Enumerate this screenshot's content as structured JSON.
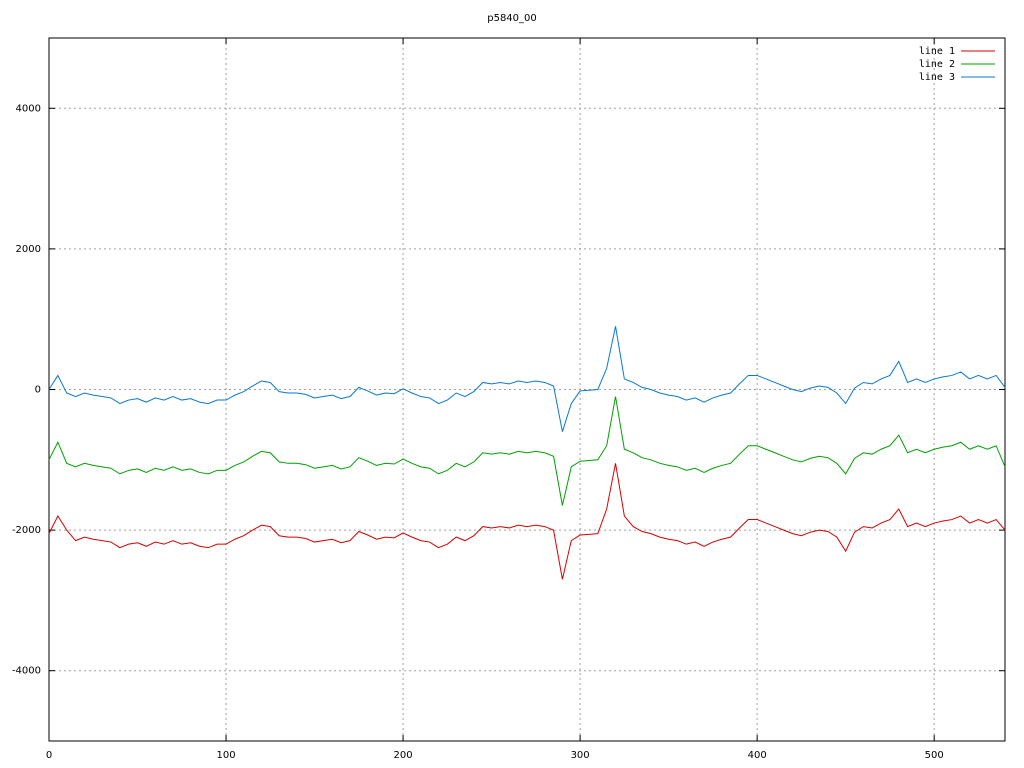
{
  "chart_data": {
    "type": "line",
    "title": "p5840_00",
    "x": [
      0,
      5,
      10,
      15,
      20,
      25,
      30,
      35,
      40,
      45,
      50,
      55,
      60,
      65,
      70,
      75,
      80,
      85,
      90,
      95,
      100,
      105,
      110,
      115,
      120,
      125,
      130,
      135,
      140,
      145,
      150,
      155,
      160,
      165,
      170,
      175,
      180,
      185,
      190,
      195,
      200,
      205,
      210,
      215,
      220,
      225,
      230,
      235,
      240,
      245,
      250,
      255,
      260,
      265,
      270,
      275,
      280,
      285,
      290,
      295,
      300,
      305,
      310,
      315,
      320,
      325,
      330,
      335,
      340,
      345,
      350,
      355,
      360,
      365,
      370,
      375,
      380,
      385,
      390,
      395,
      400,
      405,
      410,
      415,
      420,
      425,
      430,
      435,
      440,
      445,
      450,
      455,
      460,
      465,
      470,
      475,
      480,
      485,
      490,
      495,
      500,
      505,
      510,
      515,
      520,
      525,
      530,
      535,
      540
    ],
    "series": [
      {
        "name": "line 1",
        "color": "#d40000",
        "values": [
          -2050,
          -1800,
          -2000,
          -2150,
          -2100,
          -2130,
          -2150,
          -2170,
          -2250,
          -2200,
          -2180,
          -2230,
          -2170,
          -2200,
          -2150,
          -2200,
          -2180,
          -2230,
          -2250,
          -2200,
          -2200,
          -2130,
          -2080,
          -2000,
          -1930,
          -1950,
          -2080,
          -2100,
          -2100,
          -2120,
          -2170,
          -2150,
          -2130,
          -2180,
          -2150,
          -2020,
          -2070,
          -2130,
          -2100,
          -2110,
          -2040,
          -2100,
          -2150,
          -2170,
          -2250,
          -2200,
          -2100,
          -2150,
          -2080,
          -1950,
          -1970,
          -1950,
          -1970,
          -1930,
          -1950,
          -1930,
          -1950,
          -2000,
          -2700,
          -2150,
          -2070,
          -2060,
          -2050,
          -1700,
          -1050,
          -1800,
          -1950,
          -2020,
          -2050,
          -2100,
          -2130,
          -2150,
          -2200,
          -2170,
          -2230,
          -2170,
          -2130,
          -2100,
          -1970,
          -1850,
          -1850,
          -1900,
          -1950,
          -2000,
          -2050,
          -2080,
          -2030,
          -2000,
          -2020,
          -2100,
          -2300,
          -2030,
          -1950,
          -1970,
          -1900,
          -1850,
          -1700,
          -1950,
          -1900,
          -1950,
          -1900,
          -1870,
          -1850,
          -1800,
          -1900,
          -1850,
          -1900,
          -1850,
          -2000
        ]
      },
      {
        "name": "line 2",
        "color": "#00a000",
        "values": [
          -1000,
          -750,
          -1050,
          -1100,
          -1050,
          -1080,
          -1100,
          -1120,
          -1200,
          -1150,
          -1130,
          -1180,
          -1120,
          -1150,
          -1100,
          -1150,
          -1130,
          -1180,
          -1200,
          -1150,
          -1150,
          -1080,
          -1030,
          -950,
          -880,
          -900,
          -1030,
          -1050,
          -1050,
          -1070,
          -1120,
          -1100,
          -1080,
          -1130,
          -1100,
          -970,
          -1020,
          -1080,
          -1050,
          -1060,
          -990,
          -1050,
          -1100,
          -1120,
          -1200,
          -1150,
          -1050,
          -1100,
          -1030,
          -900,
          -920,
          -900,
          -920,
          -880,
          -900,
          -880,
          -900,
          -950,
          -1650,
          -1100,
          -1020,
          -1010,
          -1000,
          -800,
          -100,
          -850,
          -900,
          -970,
          -1000,
          -1050,
          -1080,
          -1100,
          -1150,
          -1120,
          -1180,
          -1120,
          -1080,
          -1050,
          -920,
          -800,
          -800,
          -850,
          -900,
          -950,
          -1000,
          -1030,
          -980,
          -950,
          -970,
          -1050,
          -1200,
          -980,
          -900,
          -920,
          -850,
          -800,
          -650,
          -900,
          -850,
          -900,
          -850,
          -820,
          -800,
          -750,
          -850,
          -800,
          -850,
          -800,
          -1100
        ]
      },
      {
        "name": "line 3",
        "color": "#0a78d0",
        "values": [
          0,
          200,
          -50,
          -100,
          -50,
          -80,
          -100,
          -120,
          -200,
          -150,
          -130,
          -180,
          -120,
          -150,
          -100,
          -150,
          -130,
          -180,
          -200,
          -150,
          -150,
          -80,
          -30,
          50,
          120,
          100,
          -30,
          -50,
          -50,
          -70,
          -120,
          -100,
          -80,
          -130,
          -100,
          30,
          -20,
          -80,
          -50,
          -60,
          10,
          -50,
          -100,
          -120,
          -200,
          -150,
          -50,
          -100,
          -30,
          100,
          80,
          100,
          80,
          120,
          100,
          120,
          100,
          50,
          -600,
          -200,
          -20,
          -10,
          0,
          300,
          900,
          150,
          100,
          30,
          0,
          -50,
          -80,
          -100,
          -150,
          -120,
          -180,
          -120,
          -80,
          -50,
          80,
          200,
          200,
          150,
          100,
          50,
          0,
          -30,
          20,
          50,
          30,
          -50,
          -200,
          20,
          100,
          80,
          150,
          200,
          400,
          100,
          150,
          100,
          150,
          180,
          200,
          250,
          150,
          200,
          150,
          200,
          30
        ]
      }
    ],
    "xlim": [
      0,
      540
    ],
    "ylim": [
      -5000,
      5000
    ],
    "xticks": [
      0,
      100,
      200,
      300,
      400,
      500
    ],
    "yticks": [
      -4000,
      -2000,
      0,
      2000,
      4000
    ],
    "grid": true,
    "legend": "top-right"
  }
}
